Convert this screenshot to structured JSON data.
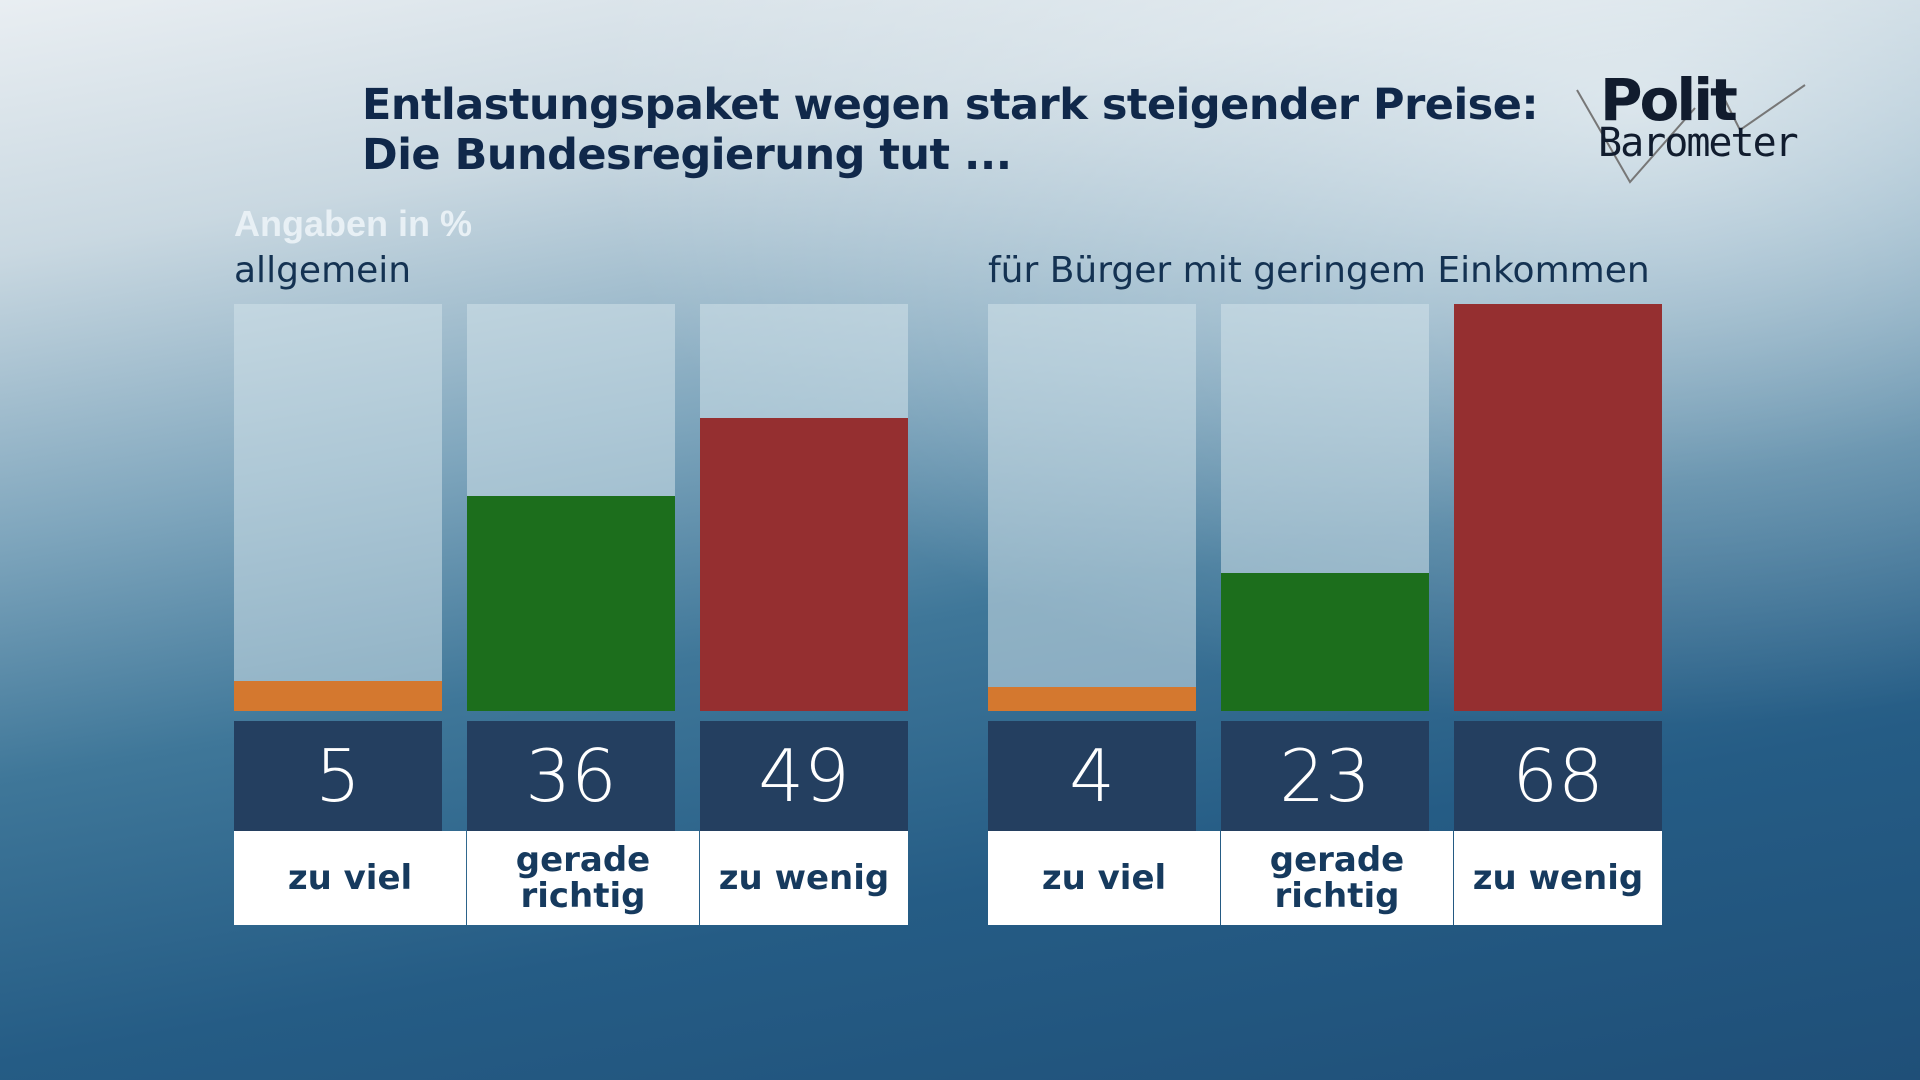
{
  "header": {
    "title_line1": "Entlastungspaket wegen stark steigender Preise:",
    "title_line2": "Die Bundesregierung tut ...",
    "logo_top": "Polit",
    "logo_bottom": "Barometer"
  },
  "chart_data": [
    {
      "type": "bar",
      "title": "allgemein",
      "unit_label": "Angaben in %",
      "ylim": [
        0,
        68
      ],
      "categories": [
        "zu viel",
        "gerade richtig",
        "zu wenig"
      ],
      "values": [
        5,
        36,
        49
      ],
      "colors": [
        "#d4782f",
        "#1c6e1c",
        "#952f30"
      ]
    },
    {
      "type": "bar",
      "title": "für Bürger mit geringem Einkommen",
      "ylim": [
        0,
        68
      ],
      "categories": [
        "zu viel",
        "gerade richtig",
        "zu wenig"
      ],
      "values": [
        4,
        23,
        68
      ],
      "colors": [
        "#d4782f",
        "#1c6e1c",
        "#952f30"
      ]
    }
  ]
}
